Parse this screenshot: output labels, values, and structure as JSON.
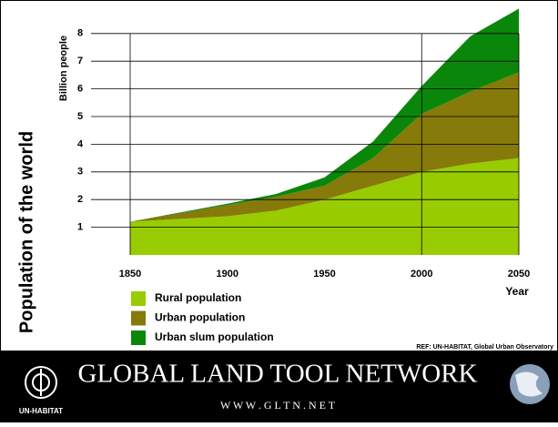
{
  "chart_data": {
    "type": "area",
    "y_label": "Billion people",
    "side_title": "Population of the world",
    "x_label": "Year",
    "source": "REF: UN-HABITAT, Global Urban Observatory",
    "x": [
      1850,
      1900,
      1925,
      1950,
      1975,
      2000,
      2025,
      2050
    ],
    "series": [
      {
        "name": "Rural population",
        "color": "#99cc00",
        "values": [
          1.2,
          1.4,
          1.6,
          2.0,
          2.5,
          3.0,
          3.3,
          3.5
        ]
      },
      {
        "name": "Urban population",
        "color": "#857a0a",
        "values": [
          0,
          0.4,
          0.5,
          0.5,
          1.0,
          2.1,
          2.6,
          3.1
        ]
      },
      {
        "name": "Urban slum population",
        "color": "#0a870a",
        "values": [
          0,
          0.05,
          0.1,
          0.3,
          0.6,
          1.0,
          2.0,
          2.3
        ]
      }
    ],
    "xlim": [
      1850,
      2050
    ],
    "xticks": [
      1850,
      1900,
      1950,
      2000,
      2050
    ],
    "ylim": [
      0,
      9
    ],
    "yticks": [
      1,
      2,
      3,
      4,
      5,
      6,
      7,
      8
    ],
    "stacked": true,
    "grid": true
  },
  "footer": {
    "title": "GLOBAL LAND TOOL NETWORK",
    "url": "W W W . G L T N . N E T",
    "org": "UN-HABITAT"
  }
}
